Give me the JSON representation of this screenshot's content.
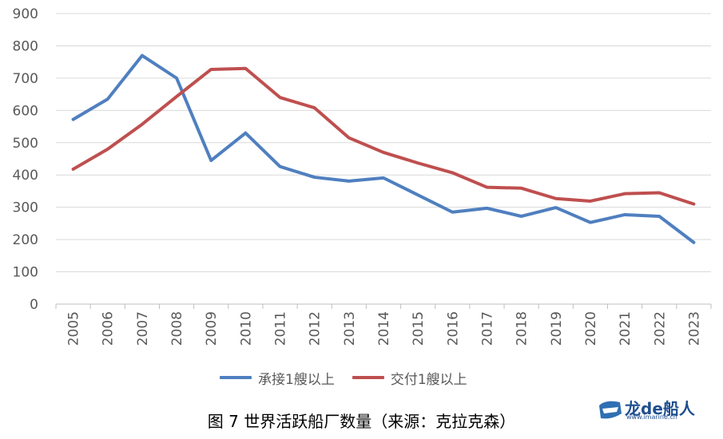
{
  "chart_data": {
    "type": "line",
    "title": "",
    "xlabel": "",
    "ylabel": "",
    "ylim": [
      0,
      900
    ],
    "yticks": [
      "0",
      "100",
      "200",
      "300",
      "400",
      "500",
      "600",
      "700",
      "800",
      "900"
    ],
    "categories": [
      "2005",
      "2006",
      "2007",
      "2008",
      "2009",
      "2010",
      "2011",
      "2012",
      "2013",
      "2014",
      "2015",
      "2016",
      "2017",
      "2018",
      "2019",
      "2020",
      "2021",
      "2022",
      "2023"
    ],
    "series": [
      {
        "name": "承接1艘以上",
        "color": "#4f7fbf",
        "values": [
          572,
          635,
          770,
          700,
          445,
          530,
          426,
          393,
          381,
          391,
          338,
          285,
          297,
          272,
          299,
          253,
          277,
          272,
          191
        ]
      },
      {
        "name": "交付1艘以上",
        "color": "#bf4f4f",
        "values": [
          418,
          480,
          557,
          643,
          727,
          730,
          640,
          608,
          515,
          470,
          437,
          407,
          362,
          359,
          327,
          319,
          342,
          345,
          310
        ]
      }
    ],
    "grid": true,
    "legend_position": "bottom"
  },
  "caption": "图 7 世界活跃船厂数量（来源：克拉克森）",
  "logo": {
    "text": "龙de船人",
    "sub": "www.imarine.cn"
  }
}
